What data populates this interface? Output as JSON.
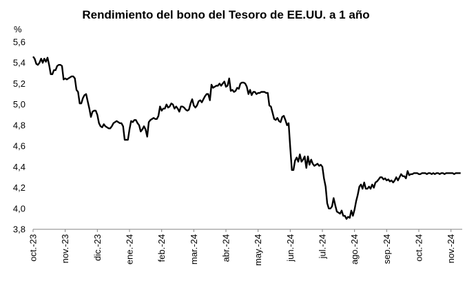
{
  "chart_data": {
    "type": "line",
    "title": "Rendimiento del bono del Tesoro de EE.UU. a 1 año",
    "ylabel": "%",
    "xlabel": "",
    "ylim": [
      3.8,
      5.6
    ],
    "yticks": [
      "5,6",
      "5,4",
      "5,2",
      "5,0",
      "4,8",
      "4,6",
      "4,4",
      "4,2",
      "4,0",
      "3,8"
    ],
    "xticks": [
      "oct.-23",
      "nov.-23",
      "dic.-23",
      "ene.-24",
      "feb.-24",
      "mar.-24",
      "abr.-24",
      "may.-24",
      "jun.-24",
      "jul.-24",
      "ago.-24",
      "sep.-24",
      "oct.-24",
      "nov.-24"
    ],
    "grid": false,
    "legend": "none",
    "series": [
      {
        "color": "#000000",
        "x": [
          0.0,
          0.05,
          0.1,
          0.15,
          0.2,
          0.25,
          0.3,
          0.35,
          0.4,
          0.45,
          0.5,
          0.55,
          0.6,
          0.65,
          0.7,
          0.75,
          0.8,
          0.85,
          0.9,
          0.95,
          1.0,
          1.05,
          1.1,
          1.15,
          1.2,
          1.25,
          1.3,
          1.35,
          1.4,
          1.45,
          1.5,
          1.55,
          1.6,
          1.65,
          1.7,
          1.75,
          1.8,
          1.85,
          1.9,
          1.95,
          2.0,
          2.05,
          2.1,
          2.15,
          2.2,
          2.25,
          2.3,
          2.35,
          2.4,
          2.45,
          2.5,
          2.55,
          2.6,
          2.65,
          2.7,
          2.75,
          2.8,
          2.85,
          2.9,
          2.95,
          3.0,
          3.05,
          3.1,
          3.15,
          3.2,
          3.25,
          3.3,
          3.35,
          3.4,
          3.45,
          3.5,
          3.55,
          3.6,
          3.65,
          3.7,
          3.75,
          3.8,
          3.85,
          3.9,
          3.95,
          4.0,
          4.05,
          4.1,
          4.15,
          4.2,
          4.25,
          4.3,
          4.35,
          4.4,
          4.45,
          4.5,
          4.55,
          4.6,
          4.65,
          4.7,
          4.75,
          4.8,
          4.85,
          4.9,
          4.95,
          5.0,
          5.05,
          5.1,
          5.15,
          5.2,
          5.25,
          5.3,
          5.35,
          5.4,
          5.45,
          5.5,
          5.55,
          5.6,
          5.65,
          5.7,
          5.75,
          5.8,
          5.85,
          5.9,
          5.95,
          6.0,
          6.05,
          6.1,
          6.15,
          6.2,
          6.25,
          6.3,
          6.35,
          6.4,
          6.45,
          6.5,
          6.55,
          6.6,
          6.65,
          6.7,
          6.75,
          6.8,
          6.85,
          6.9,
          6.95,
          7.0,
          7.05,
          7.1,
          7.15,
          7.2,
          7.25,
          7.3,
          7.35,
          7.4,
          7.45,
          7.5,
          7.55,
          7.6,
          7.65,
          7.7,
          7.75,
          7.8,
          7.85,
          7.9,
          7.95,
          8.0,
          8.05,
          8.1,
          8.15,
          8.2,
          8.25,
          8.3,
          8.35,
          8.4,
          8.45,
          8.5,
          8.55,
          8.6,
          8.65,
          8.7,
          8.75,
          8.8,
          8.85,
          8.9,
          8.95,
          9.0,
          9.05,
          9.1,
          9.15,
          9.2,
          9.25,
          9.3,
          9.35,
          9.4,
          9.45,
          9.5,
          9.55,
          9.6,
          9.65,
          9.7,
          9.75,
          9.8,
          9.85,
          9.9,
          9.95,
          10.0,
          10.05,
          10.1,
          10.15,
          10.2,
          10.25,
          10.3,
          10.35,
          10.4,
          10.45,
          10.5,
          10.55,
          10.6,
          10.65,
          10.7,
          10.75,
          10.8,
          10.85,
          10.9,
          10.95,
          11.0,
          11.05,
          11.1,
          11.15,
          11.2,
          11.25,
          11.3,
          11.35,
          11.4,
          11.45,
          11.5,
          11.55,
          11.6,
          11.65,
          11.7,
          11.75,
          11.8,
          11.85,
          11.9,
          11.95,
          12.0,
          12.05,
          12.1,
          12.15,
          12.2,
          12.25,
          12.3,
          12.35,
          12.4,
          12.45,
          12.5,
          12.55,
          12.6,
          12.65,
          12.7,
          12.75,
          12.8,
          12.85,
          12.9,
          12.95,
          13.0,
          13.05,
          13.1,
          13.15,
          13.2,
          13.25,
          13.3
        ],
        "values": [
          5.46,
          5.44,
          5.39,
          5.38,
          5.4,
          5.44,
          5.4,
          5.44,
          5.41,
          5.45,
          5.38,
          5.29,
          5.29,
          5.33,
          5.33,
          5.37,
          5.38,
          5.38,
          5.37,
          5.24,
          5.25,
          5.24,
          5.25,
          5.26,
          5.27,
          5.27,
          5.25,
          5.14,
          5.12,
          5.01,
          5.01,
          5.06,
          5.09,
          5.1,
          5.03,
          4.96,
          4.88,
          4.93,
          4.94,
          4.94,
          4.9,
          4.82,
          4.79,
          4.78,
          4.81,
          4.79,
          4.78,
          4.77,
          4.77,
          4.79,
          4.82,
          4.83,
          4.84,
          4.83,
          4.82,
          4.82,
          4.79,
          4.66,
          4.66,
          4.66,
          4.76,
          4.84,
          4.83,
          4.85,
          4.85,
          4.82,
          4.8,
          4.74,
          4.76,
          4.79,
          4.76,
          4.69,
          4.83,
          4.85,
          4.86,
          4.87,
          4.86,
          4.86,
          4.89,
          4.98,
          4.94,
          4.96,
          4.96,
          5.0,
          4.97,
          4.98,
          5.01,
          5.0,
          4.96,
          4.98,
          4.96,
          4.93,
          4.98,
          4.98,
          4.97,
          4.95,
          4.94,
          4.95,
          5.01,
          5.05,
          4.99,
          4.97,
          4.99,
          5.03,
          5.04,
          5.02,
          5.05,
          5.08,
          5.1,
          5.1,
          5.04,
          5.19,
          5.16,
          5.17,
          5.18,
          5.18,
          5.2,
          5.18,
          5.2,
          5.22,
          5.17,
          5.18,
          5.25,
          5.13,
          5.14,
          5.12,
          5.13,
          5.16,
          5.15,
          5.2,
          5.21,
          5.21,
          5.2,
          5.17,
          5.1,
          5.14,
          5.09,
          5.12,
          5.12,
          5.1,
          5.11,
          5.11,
          5.12,
          5.12,
          5.12,
          5.11,
          5.11,
          4.99,
          4.98,
          4.92,
          4.86,
          4.85,
          4.87,
          4.84,
          4.83,
          4.88,
          4.89,
          4.85,
          4.8,
          4.82,
          4.59,
          4.37,
          4.37,
          4.46,
          4.49,
          4.45,
          4.52,
          4.45,
          4.47,
          4.5,
          4.39,
          4.5,
          4.42,
          4.47,
          4.43,
          4.41,
          4.42,
          4.43,
          4.41,
          4.42,
          4.4,
          4.29,
          4.21,
          4.05,
          4.0,
          4.0,
          4.02,
          4.1,
          4.03,
          3.97,
          3.96,
          3.95,
          3.98,
          3.93,
          3.93,
          3.9,
          3.92,
          3.91,
          3.98,
          3.93,
          3.99,
          4.07,
          4.13,
          4.21,
          4.23,
          4.19,
          4.25,
          4.19,
          4.19,
          4.21,
          4.19,
          4.23,
          4.2,
          4.25,
          4.26,
          4.28,
          4.3,
          4.3,
          4.28,
          4.29,
          4.27,
          4.28,
          4.26,
          4.27,
          4.25,
          4.27,
          4.3,
          4.27,
          4.3,
          4.33,
          4.31,
          4.31,
          4.29,
          4.36,
          4.32,
          4.33,
          4.33,
          4.34,
          4.34,
          4.34,
          4.33,
          4.33,
          4.34,
          4.34,
          4.34,
          4.33,
          4.34,
          4.34,
          4.33,
          4.34,
          4.33,
          4.34,
          4.34,
          4.33,
          4.34,
          4.34,
          4.33,
          4.34,
          4.34,
          4.34,
          4.34,
          4.34,
          4.33,
          4.34,
          4.34,
          4.34,
          4.34
        ]
      }
    ]
  }
}
